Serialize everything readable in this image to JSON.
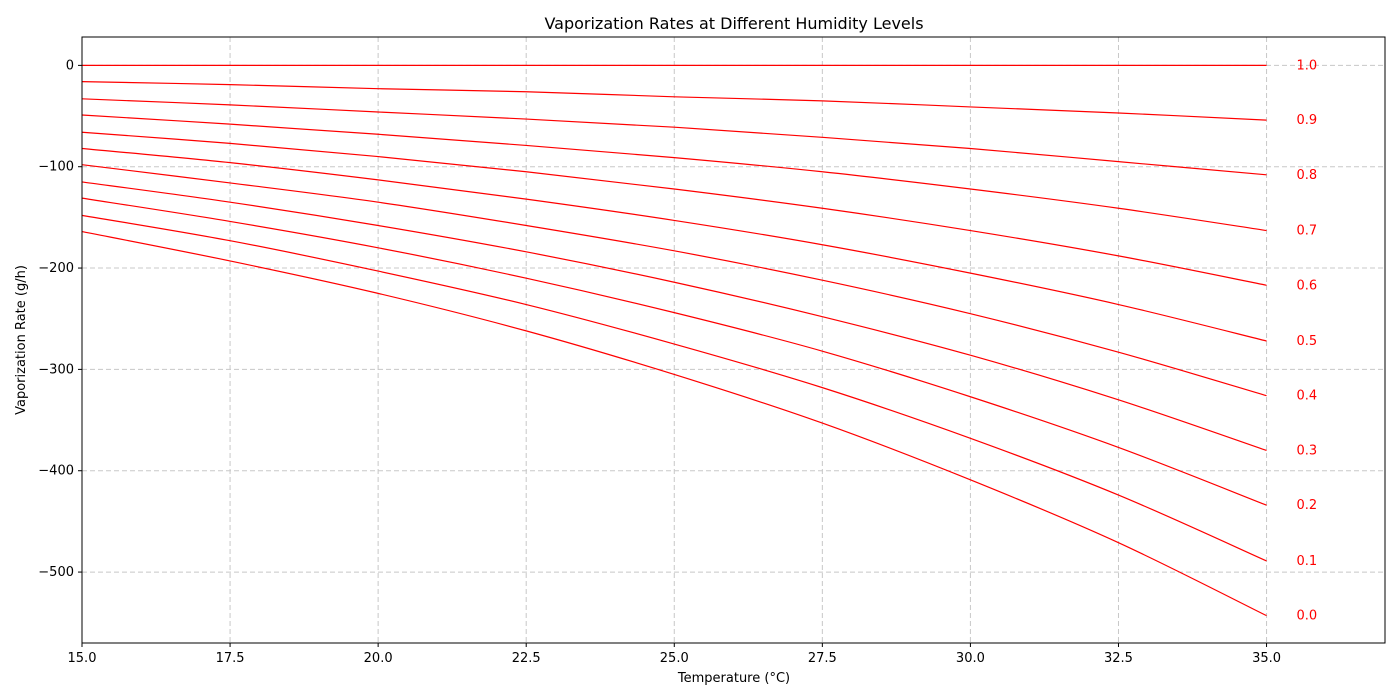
{
  "chart_data": {
    "type": "line",
    "title": "Vaporization Rates at Different Humidity Levels",
    "xlabel": "Temperature (°C)",
    "ylabel": "Vaporization Rate (g/h)",
    "xlim": [
      15.0,
      37.0
    ],
    "ylim": [
      -570,
      28
    ],
    "x_ticks": [
      15.0,
      17.5,
      20.0,
      22.5,
      25.0,
      27.5,
      30.0,
      32.5,
      35.0
    ],
    "x_tick_labels": [
      "15.0",
      "17.5",
      "20.0",
      "22.5",
      "25.0",
      "27.5",
      "30.0",
      "32.5",
      "35.0"
    ],
    "y_ticks": [
      0,
      -100,
      -200,
      -300,
      -400,
      -500
    ],
    "y_tick_labels": [
      "0",
      "−100",
      "−200",
      "−300",
      "−400",
      "−500"
    ],
    "grid": true,
    "line_color": "#ff0000",
    "label_color": "#ff0000",
    "x": [
      15.0,
      17.5,
      20.0,
      22.5,
      25.0,
      27.5,
      30.0,
      32.5,
      35.0
    ],
    "series": [
      {
        "name": "1.0",
        "values": [
          0,
          0,
          0,
          0,
          0,
          0,
          0,
          0,
          0
        ]
      },
      {
        "name": "0.9",
        "values": [
          -16,
          -19,
          -23,
          -26,
          -31,
          -35,
          -41,
          -47,
          -54
        ]
      },
      {
        "name": "0.8",
        "values": [
          -33,
          -39,
          -46,
          -53,
          -61,
          -71,
          -82,
          -95,
          -108
        ]
      },
      {
        "name": "0.7",
        "values": [
          -49,
          -58,
          -68,
          -79,
          -91,
          -105,
          -122,
          -141,
          -163
        ]
      },
      {
        "name": "0.6",
        "values": [
          -66,
          -77,
          -90,
          -105,
          -122,
          -141,
          -163,
          -188,
          -217
        ]
      },
      {
        "name": "0.5",
        "values": [
          -82,
          -96,
          -113,
          -132,
          -153,
          -177,
          -205,
          -236,
          -272
        ]
      },
      {
        "name": "0.4",
        "values": [
          -98,
          -116,
          -135,
          -158,
          -183,
          -212,
          -245,
          -283,
          -326
        ]
      },
      {
        "name": "0.3",
        "values": [
          -115,
          -135,
          -158,
          -184,
          -214,
          -248,
          -286,
          -330,
          -380
        ]
      },
      {
        "name": "0.2",
        "values": [
          -131,
          -154,
          -180,
          -210,
          -244,
          -282,
          -327,
          -377,
          -434
        ]
      },
      {
        "name": "0.1",
        "values": [
          -148,
          -173,
          -203,
          -236,
          -275,
          -318,
          -368,
          -424,
          -489
        ]
      },
      {
        "name": "0.0",
        "values": [
          -164,
          -193,
          -225,
          -262,
          -305,
          -353,
          -409,
          -471,
          -543
        ]
      }
    ]
  }
}
